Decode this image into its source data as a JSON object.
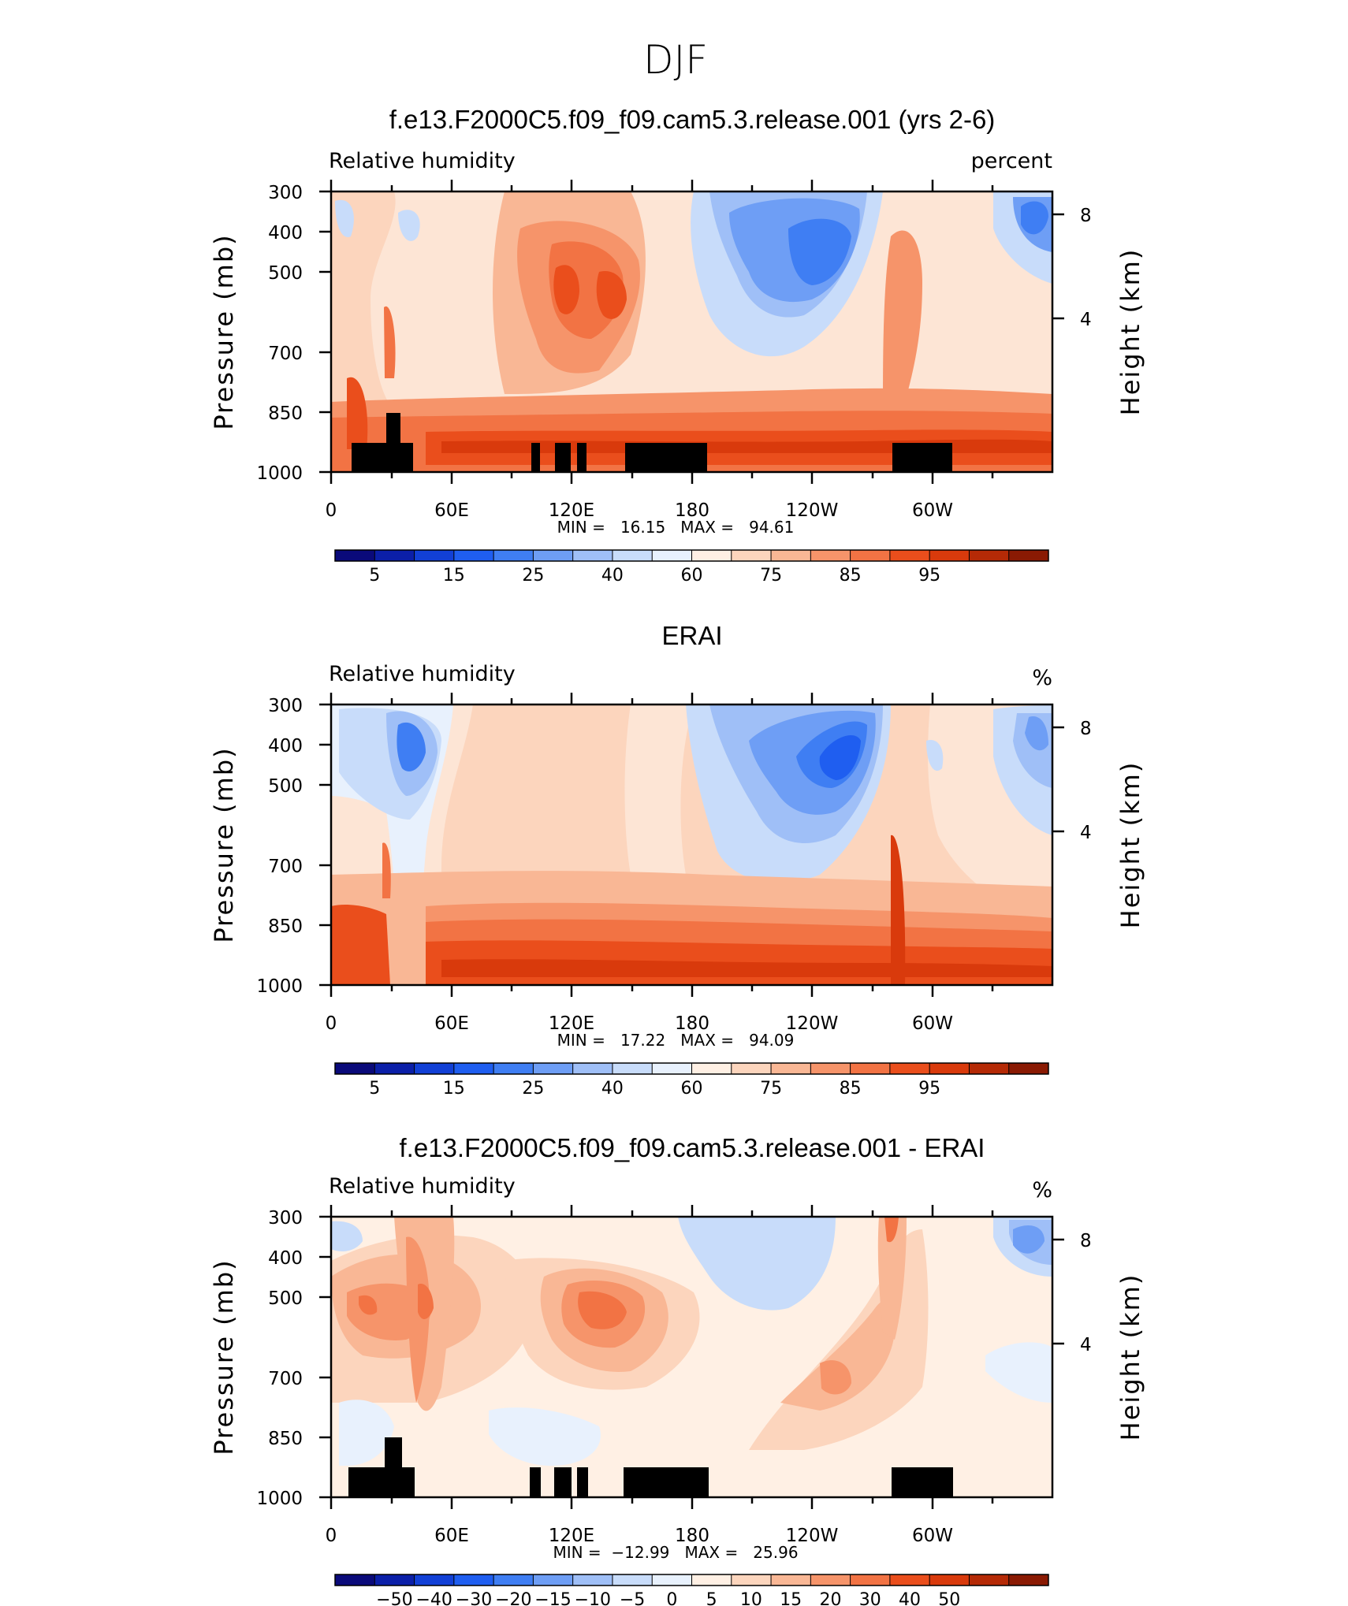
{
  "page_title": "DJF",
  "panels": [
    {
      "title": "f.e13.F2000C5.f09_f09.cam5.3.release.001 (yrs 2-6)",
      "left_label": "Relative humidity",
      "right_label": "percent",
      "y_left_title": "Pressure (mb)",
      "y_right_title": "Height (km)",
      "y_left_ticks": [
        "300",
        "400",
        "500",
        "700",
        "850",
        "1000"
      ],
      "y_right_ticks": [
        "8",
        "4"
      ],
      "x_ticks": [
        "0",
        "60E",
        "120E",
        "180",
        "120W",
        "60W"
      ],
      "stats": "MIN =   16.15   MAX =   94.61",
      "colorbar_labels": [
        "5",
        "15",
        "25",
        "40",
        "60",
        "75",
        "85",
        "95"
      ]
    },
    {
      "title": "ERAI",
      "left_label": "Relative humidity",
      "right_label": "%",
      "y_left_title": "Pressure (mb)",
      "y_right_title": "Height (km)",
      "y_left_ticks": [
        "300",
        "400",
        "500",
        "700",
        "850",
        "1000"
      ],
      "y_right_ticks": [
        "8",
        "4"
      ],
      "x_ticks": [
        "0",
        "60E",
        "120E",
        "180",
        "120W",
        "60W"
      ],
      "stats": "MIN =   17.22   MAX =   94.09",
      "colorbar_labels": [
        "5",
        "15",
        "25",
        "40",
        "60",
        "75",
        "85",
        "95"
      ]
    },
    {
      "title": "f.e13.F2000C5.f09_f09.cam5.3.release.001 - ERAI",
      "left_label": "Relative humidity",
      "right_label": "%",
      "y_left_title": "Pressure (mb)",
      "y_right_title": "Height (km)",
      "y_left_ticks": [
        "300",
        "400",
        "500",
        "700",
        "850",
        "1000"
      ],
      "y_right_ticks": [
        "8",
        "4"
      ],
      "x_ticks": [
        "0",
        "60E",
        "120E",
        "180",
        "120W",
        "60W"
      ],
      "stats": "MIN =  −12.99   MAX =   25.96",
      "colorbar_labels": [
        "−50",
        "−40",
        "−30",
        "−20",
        "−15",
        "−10",
        "−5",
        "0",
        "5",
        "10",
        "15",
        "20",
        "30",
        "40",
        "50"
      ]
    }
  ],
  "colors": {
    "colorbar": [
      "#0a0a7a",
      "#0b1fa8",
      "#1240d6",
      "#1f5ef0",
      "#3f7ef3",
      "#6e9ef5",
      "#9fbff7",
      "#c8dcfa",
      "#e8f1fd",
      "#fff0e4",
      "#fcd5bd",
      "#f9b795",
      "#f6946a",
      "#f27344",
      "#ea4e1c",
      "#d93a0c",
      "#b52a06",
      "#8a1a03"
    ],
    "topography": "#000000"
  },
  "chart_data": [
    {
      "type": "contour",
      "title": "f.e13.F2000C5.f09_f09.cam5.3.release.001 (yrs 2-6)",
      "variable": "Relative humidity",
      "units": "percent",
      "x_axis": "longitude",
      "x_tick_values": [
        0,
        60,
        120,
        180,
        240,
        300
      ],
      "x_range": [
        0,
        360
      ],
      "y_axis": "pressure (mb)",
      "y_range": [
        1000,
        300
      ],
      "secondary_y": {
        "label": "Height (km)",
        "ticks": [
          8,
          4
        ]
      },
      "min": 16.15,
      "max": 94.61,
      "contour_levels": [
        5,
        10,
        15,
        20,
        25,
        30,
        40,
        50,
        60,
        65,
        75,
        80,
        85,
        90,
        95
      ],
      "features": [
        {
          "desc": "dry minimum",
          "lon": 238,
          "p": 400,
          "value": 20
        },
        {
          "desc": "dry minimum",
          "lon": 345,
          "p": 400,
          "value": 25
        },
        {
          "desc": "moist maximum",
          "lon": 128,
          "p": 540,
          "value": 85
        },
        {
          "desc": "moist boundary layer band",
          "lon_range": [
            45,
            360
          ],
          "p": 925,
          "value": 90
        }
      ],
      "topography_masked": true
    },
    {
      "type": "contour",
      "title": "ERAI",
      "variable": "Relative humidity",
      "units": "%",
      "x_axis": "longitude",
      "x_tick_values": [
        0,
        60,
        120,
        180,
        240,
        300
      ],
      "x_range": [
        0,
        360
      ],
      "y_axis": "pressure (mb)",
      "y_range": [
        1000,
        300
      ],
      "secondary_y": {
        "label": "Height (km)",
        "ticks": [
          8,
          4
        ]
      },
      "min": 17.22,
      "max": 94.09,
      "contour_levels": [
        5,
        10,
        15,
        20,
        25,
        30,
        40,
        50,
        60,
        65,
        75,
        80,
        85,
        90,
        95
      ],
      "features": [
        {
          "desc": "dry minimum",
          "lon": 250,
          "p": 440,
          "value": 20
        },
        {
          "desc": "dry minimum",
          "lon": 40,
          "p": 420,
          "value": 35
        },
        {
          "desc": "moist boundary layer band",
          "lon_range": [
            45,
            360
          ],
          "p": 950,
          "value": 90
        }
      ],
      "topography_masked": false
    },
    {
      "type": "contour",
      "title": "f.e13.F2000C5.f09_f09.cam5.3.release.001 - ERAI",
      "variable": "Relative humidity",
      "units": "%",
      "x_axis": "longitude",
      "x_tick_values": [
        0,
        60,
        120,
        180,
        240,
        300
      ],
      "x_range": [
        0,
        360
      ],
      "y_axis": "pressure (mb)",
      "y_range": [
        1000,
        300
      ],
      "secondary_y": {
        "label": "Height (km)",
        "ticks": [
          8,
          4
        ]
      },
      "min": -12.99,
      "max": 25.96,
      "contour_levels": [
        -50,
        -40,
        -30,
        -20,
        -15,
        -10,
        -5,
        0,
        5,
        10,
        15,
        20,
        30,
        40,
        50
      ],
      "features": [
        {
          "desc": "moist bias",
          "lon": 40,
          "p": 500,
          "value": 20
        },
        {
          "desc": "moist bias",
          "lon": 140,
          "p": 520,
          "value": 20
        },
        {
          "desc": "moist bias",
          "lon": 258,
          "p": 700,
          "value": 20
        },
        {
          "desc": "dry bias",
          "lon": 345,
          "p": 420,
          "value": -10
        },
        {
          "desc": "dry bias",
          "lon": 220,
          "p": 450,
          "value": -5
        }
      ],
      "topography_masked": true
    }
  ]
}
